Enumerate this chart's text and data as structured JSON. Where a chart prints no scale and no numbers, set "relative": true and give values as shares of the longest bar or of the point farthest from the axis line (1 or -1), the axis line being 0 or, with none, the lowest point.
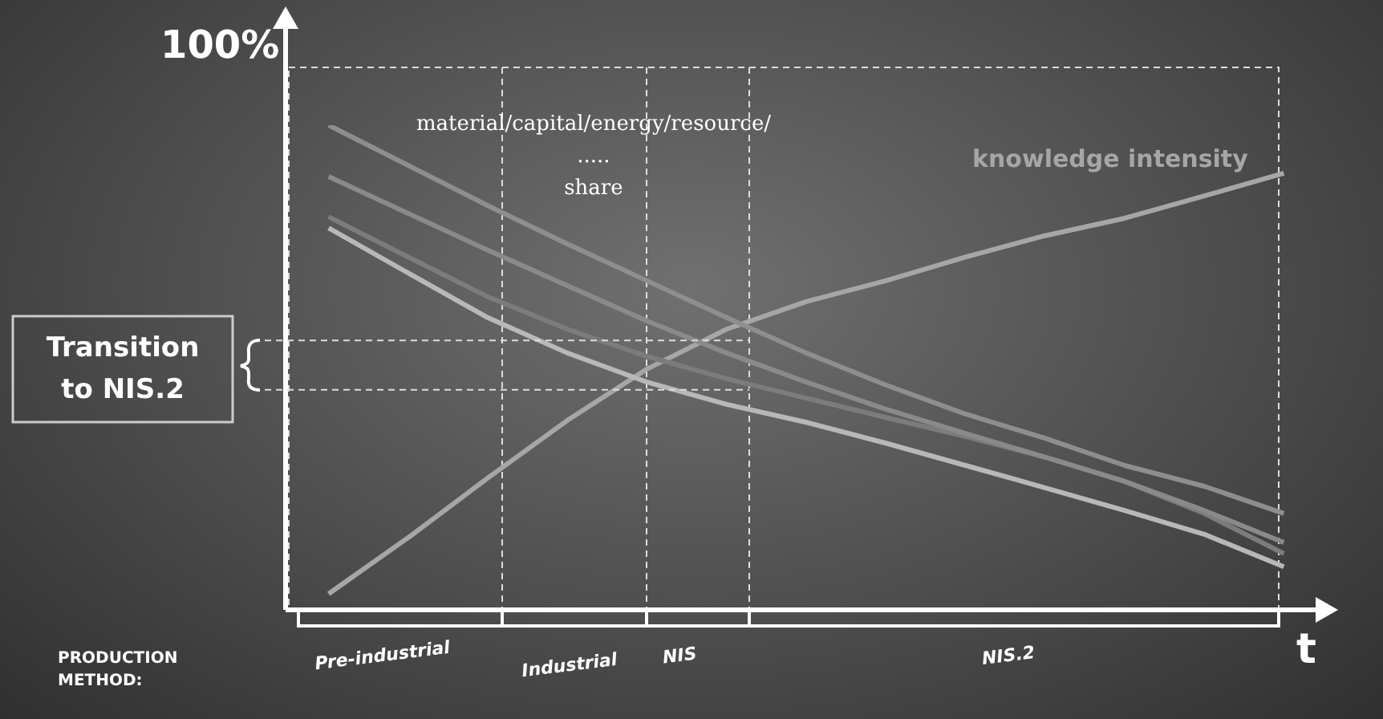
{
  "chart_data": {
    "type": "line",
    "relative": true,
    "ylabel": "100%",
    "xlabel": "t",
    "categories": [
      null,
      null,
      null,
      null,
      null,
      null,
      null,
      null,
      null,
      null,
      null,
      null,
      null
    ],
    "series": [
      {
        "color": "#8e8e8e",
        "values": [
          1,
          0.917,
          0.834,
          0.755,
          0.679,
          0.603,
          0.53,
          0.464,
          0.404,
          0.354,
          0.298,
          0.255,
          0.199
        ]
      },
      {
        "color": "#8a8a8a",
        "values": [
          0.894,
          0.818,
          0.742,
          0.669,
          0.596,
          0.53,
          0.47,
          0.414,
          0.364,
          0.315,
          0.265,
          0.205,
          0.139
        ]
      },
      {
        "color": "#7c7c7c",
        "values": [
          0.811,
          0.728,
          0.646,
          0.579,
          0.523,
          0.477,
          0.437,
          0.397,
          0.358,
          0.315,
          0.265,
          0.199,
          0.116
        ]
      },
      {
        "color": "#b8b8b8",
        "values": [
          0.788,
          0.695,
          0.603,
          0.53,
          0.47,
          0.424,
          0.387,
          0.344,
          0.298,
          0.252,
          0.205,
          0.156,
          0.089
        ]
      },
      {
        "name": "knowledge intensity",
        "color": "#a6a6a6",
        "values": [
          0.033,
          0.149,
          0.272,
          0.391,
          0.497,
          0.579,
          0.636,
          0.679,
          0.728,
          0.772,
          0.808,
          0.854,
          0.901
        ]
      }
    ],
    "ref_lines": [
      {
        "axis": "y",
        "value": 0.556,
        "label": "Transition\nto NIS.2",
        "color": "#dddddd",
        "line_style": "dashed"
      },
      {
        "axis": "y",
        "value": 0.454,
        "color": "#dddddd",
        "line_style": "dashed"
      }
    ],
    "annotations": [
      "material/capital/energy/resource/\n.....\nshare",
      "PRODUCTION\nMETHOD:",
      "Pre-industrial",
      "Industrial",
      "NIS",
      "NIS.2"
    ],
    "legend": false,
    "grid": false,
    "marker": "none",
    "line_style": "solid",
    "tick_labels": false
  }
}
